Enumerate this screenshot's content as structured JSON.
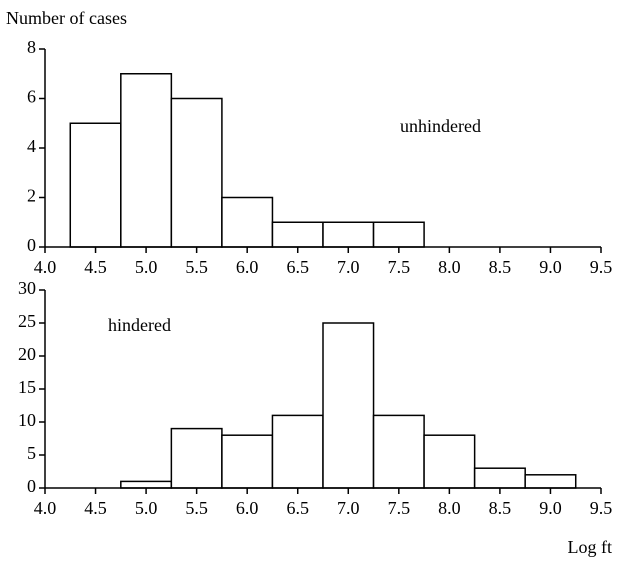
{
  "chart_data": [
    {
      "type": "histogram",
      "y_label": "Number of cases",
      "annotation": "unhindered",
      "bins": [
        4.25,
        4.75,
        5.25,
        5.75,
        6.25,
        6.75,
        7.25,
        7.75
      ],
      "values": [
        5,
        7,
        6,
        2,
        1,
        1,
        1
      ],
      "xlim": [
        4.0,
        9.5
      ],
      "ylim": [
        0,
        8
      ],
      "xticks": [
        {
          "value": 4.0,
          "label": "4.0"
        },
        4.5,
        {
          "value": 5.0,
          "label": "5.0"
        },
        5.5,
        {
          "value": 6.0,
          "label": "6.0"
        },
        6.5,
        {
          "value": 7.0,
          "label": "7.0"
        },
        7.5,
        {
          "value": 8.0,
          "label": "8.0"
        },
        8.5,
        {
          "value": 9.0,
          "label": "9.0"
        },
        9.5
      ],
      "yticks": [
        0,
        2,
        4,
        6,
        8
      ]
    },
    {
      "type": "histogram",
      "x_label": "Log ft",
      "annotation": "hindered",
      "bins": [
        4.75,
        5.25,
        5.75,
        6.25,
        6.75,
        7.25,
        7.75,
        8.25,
        8.75,
        9.25
      ],
      "values": [
        1,
        9,
        8,
        11,
        25,
        11,
        8,
        3,
        2
      ],
      "xlim": [
        4.0,
        9.5
      ],
      "ylim": [
        0,
        30
      ],
      "xticks": [
        {
          "value": 4.0,
          "label": "4.0"
        },
        4.5,
        {
          "value": 5.0,
          "label": "5.0"
        },
        5.5,
        {
          "value": 6.0,
          "label": "6.0"
        },
        6.5,
        {
          "value": 7.0,
          "label": "7.0"
        },
        7.5,
        {
          "value": 8.0,
          "label": "8.0"
        },
        8.5,
        {
          "value": 9.0,
          "label": "9.0"
        },
        9.5
      ],
      "yticks": [
        0,
        5,
        10,
        15,
        20,
        25,
        30
      ]
    }
  ]
}
